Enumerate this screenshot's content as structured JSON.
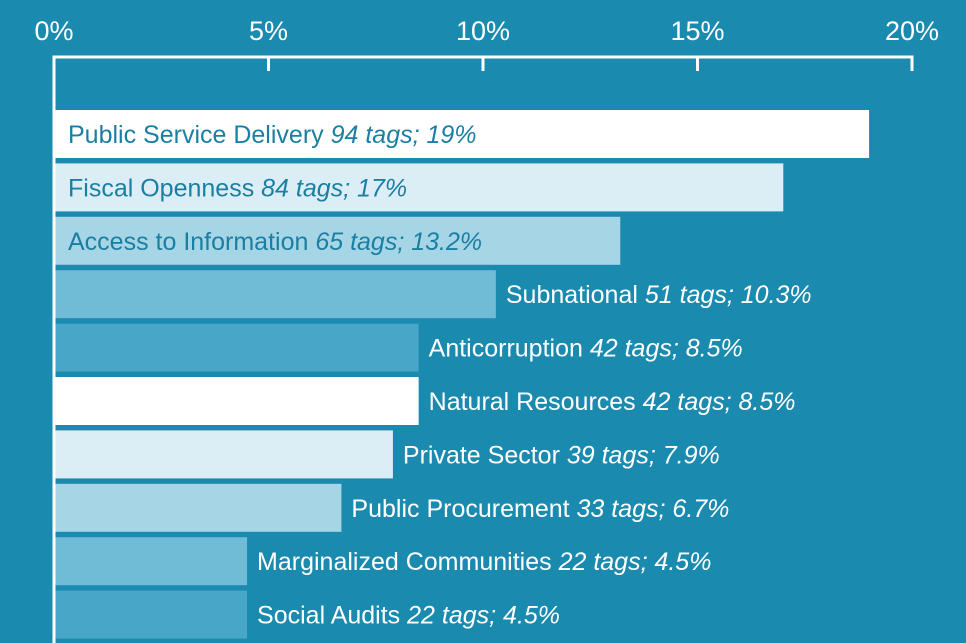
{
  "chart_data": {
    "type": "bar",
    "orientation": "horizontal",
    "title": "",
    "xlabel": "",
    "ylabel": "",
    "xlim": [
      0,
      20
    ],
    "x_ticks": [
      0,
      5,
      10,
      15,
      20
    ],
    "x_tick_labels": [
      "0%",
      "5%",
      "10%",
      "15%",
      "20%"
    ],
    "grid": false,
    "categories": [
      "Public Service Delivery",
      "Fiscal Openness",
      "Access to Information",
      "Subnational",
      "Anticorruption",
      "Natural Resources",
      "Private Sector",
      "Public Procurement",
      "Marginalized Communities",
      "Social Audits"
    ],
    "values": [
      19,
      17,
      13.2,
      10.3,
      8.5,
      8.5,
      7.9,
      6.7,
      4.5,
      4.5
    ],
    "annotations": [
      "94 tags; 19%",
      "84 tags; 17%",
      "65 tags; 13.2%",
      "51 tags; 10.3%",
      "42 tags; 8.5%",
      "42 tags; 8.5%",
      "39 tags; 7.9%",
      "33 tags; 6.7%",
      "22 tags; 4.5%",
      "22 tags; 4.5%"
    ],
    "colors": {
      "background": "#1a8aaf",
      "axis": "#ffffff",
      "bar_palette": [
        "#ffffff",
        "#dbeef5",
        "#a6d5e6",
        "#70bcd6",
        "#48a7c8"
      ],
      "label_dark": "#1a7fa3",
      "label_light": "#ffffff"
    }
  }
}
